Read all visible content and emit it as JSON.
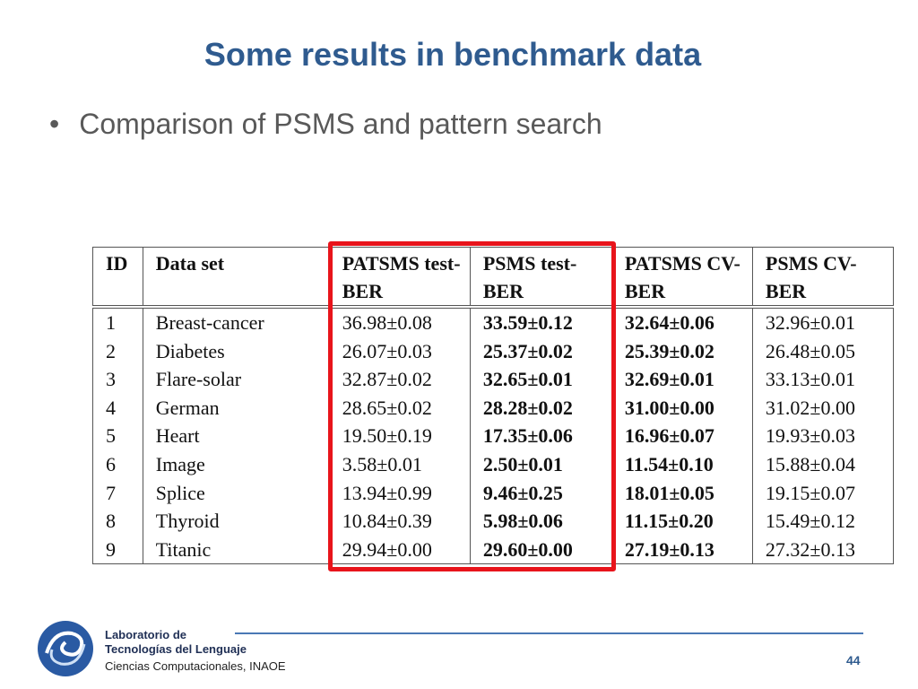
{
  "title": "Some results in benchmark data",
  "bullet": "Comparison of PSMS and pattern search",
  "table": {
    "header": [
      "ID",
      "Data set",
      "PATSMS test-BER",
      "PSMS test-BER",
      "PATSMS CV-BER",
      "PSMS CV-BER"
    ],
    "rows": [
      [
        "1",
        "Breast-cancer",
        "36.98±0.08",
        "33.59±0.12",
        "32.64±0.06",
        "32.96±0.01"
      ],
      [
        "2",
        "Diabetes",
        "26.07±0.03",
        "25.37±0.02",
        "25.39±0.02",
        "26.48±0.05"
      ],
      [
        "3",
        "Flare-solar",
        "32.87±0.02",
        "32.65±0.01",
        "32.69±0.01",
        "33.13±0.01"
      ],
      [
        "4",
        "German",
        "28.65±0.02",
        "28.28±0.02",
        "31.00±0.00",
        "31.02±0.00"
      ],
      [
        "5",
        "Heart",
        "19.50±0.19",
        "17.35±0.06",
        "16.96±0.07",
        "19.93±0.03"
      ],
      [
        "6",
        "Image",
        "3.58±0.01",
        "2.50±0.01",
        "11.54±0.10",
        "15.88±0.04"
      ],
      [
        "7",
        "Splice",
        "13.94±0.99",
        "9.46±0.25",
        "18.01±0.05",
        "19.15±0.07"
      ],
      [
        "8",
        "Thyroid",
        "10.84±0.39",
        "5.98±0.06",
        "11.15±0.20",
        "15.49±0.12"
      ],
      [
        "9",
        "Titanic",
        "29.94±0.00",
        "29.60±0.00",
        "27.19±0.13",
        "27.32±0.13"
      ]
    ]
  },
  "footer": {
    "line1": "Laboratorio de",
    "line2": "Tecnologías del Lenguaje",
    "line3": "Ciencias Computacionales, INAOE",
    "page": "44"
  }
}
